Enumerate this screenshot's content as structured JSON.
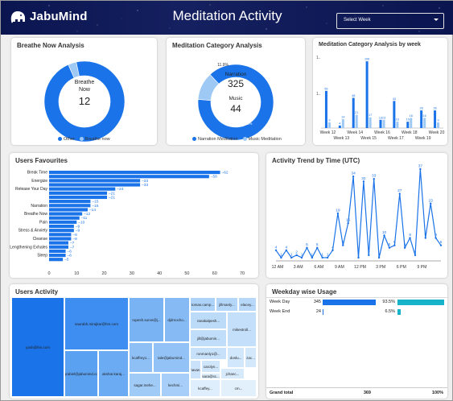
{
  "header": {
    "logo_text": "JabuMind",
    "title": "Meditation Activity",
    "select_placeholder": "Select Week"
  },
  "colors": {
    "primary": "#1a73e8",
    "light": "#9ec9f5",
    "teal": "#17b3c9",
    "header_bg": "#0b1550"
  },
  "breathe": {
    "title": "Breathe Now Analysis",
    "center_label": "Breathe Now",
    "center_value": "12",
    "pct_main": "96.7%",
    "legend": [
      "Other",
      "Breathe now"
    ]
  },
  "category": {
    "title": "Meditation Category Analysis",
    "narration_label": "Narration",
    "narration_value": "325",
    "music_label": "Music",
    "music_value": "44",
    "pct_minor": "11.9%",
    "pct_main": "88.1%",
    "legend": [
      "Narration Meditation",
      "Music Meditation"
    ]
  },
  "category_week": {
    "title": "Meditation Category Analysis by week",
    "y_ticks": [
      "1..",
      "1.."
    ]
  },
  "favourites": {
    "title": "Users Favourites"
  },
  "trend": {
    "title": "Activity Trend by Time (UTC)"
  },
  "users_activity": {
    "title": "Users Activity",
    "cells": [
      "yash@hm.com",
      "saurabh.mirajkar@hm.com",
      "clgrabiel@jabumind.com",
      "akshar.karaj...",
      "rupesh.surve@j...",
      "djdmocho...",
      "kcaffrey1...",
      "tale@jabumind...",
      "sagar.mehe...",
      "kechmi...",
      "tomas.camp...",
      "jillmanly...",
      "elacey...",
      "ranakalpesh...",
      "jill@jabumin...",
      "mikestroll...",
      "ronmanly1@...",
      "bhavan...",
      "carolyn...",
      "donlu...",
      "zac...",
      "jchanc...",
      "sara@sc...",
      "kcaffey...",
      "cm..."
    ]
  },
  "weekday": {
    "title": "Weekday wise Usage",
    "rows": [
      {
        "label": "Week Day",
        "count": "345",
        "pct": "93.5%"
      },
      {
        "label": "Week End",
        "count": "24",
        "pct": "6.5%"
      }
    ],
    "total_label": "Grand total",
    "total_count": "369",
    "total_pct": "100%"
  },
  "chart_data": [
    {
      "type": "pie",
      "title": "Breathe Now Analysis",
      "labels": [
        "Other",
        "Breathe now"
      ],
      "values": [
        96.7,
        3.3
      ]
    },
    {
      "type": "pie",
      "title": "Meditation Category Analysis",
      "labels": [
        "Narration Meditation",
        "Music Meditation"
      ],
      "values": [
        88.1,
        11.9
      ]
    },
    {
      "type": "bar",
      "title": "Meditation Category Analysis by week",
      "categories": [
        "Week 12",
        "Week 13",
        "Week 14",
        "Week 15",
        "Week 16",
        "Week 17",
        "Week 18",
        "Week 19",
        "Week 20"
      ],
      "series": [
        {
          "name": "Narration",
          "values": [
            59,
            4,
            48,
            106,
            13,
            43,
            10,
            28,
            28
          ]
        },
        {
          "name": "Music",
          "values": [
            9,
            14,
            21,
            17,
            13,
            10,
            16,
            16,
            9
          ]
        }
      ]
    },
    {
      "type": "bar",
      "title": "Users Favourites",
      "categories": [
        "Break Time",
        "",
        "Energize",
        "",
        "Release Your Day",
        "",
        "",
        "",
        "Narration",
        "",
        "Breathe Now",
        "",
        "Pain",
        "",
        "Stress & Anxiety",
        "",
        "Cleanse",
        "",
        "Lengthening Exhales",
        "",
        "Sleep",
        ""
      ],
      "values": [
        62,
        58,
        33,
        33,
        24,
        21,
        21,
        15,
        15,
        14,
        12,
        11,
        10,
        9,
        9,
        8,
        8,
        7,
        7,
        6,
        6,
        5
      ],
      "xlim": [
        0,
        70
      ],
      "x_ticks": [
        "0",
        "10",
        "20",
        "30",
        "40",
        "50",
        "60",
        "70"
      ]
    },
    {
      "type": "line",
      "title": "Activity Trend by Time (UTC)",
      "values": [
        4,
        1,
        4,
        1,
        2,
        1,
        5,
        1,
        5,
        1,
        1,
        4,
        19,
        6,
        15,
        34,
        1,
        32,
        2,
        33,
        1,
        10,
        5,
        6,
        27,
        5,
        9,
        2,
        37,
        9,
        23,
        9,
        6
      ],
      "x_ticks": [
        "12 AM",
        "3 AM",
        "6 AM",
        "9 AM",
        "12 PM",
        "3 PM",
        "6 PM",
        "9 PM"
      ]
    }
  ]
}
